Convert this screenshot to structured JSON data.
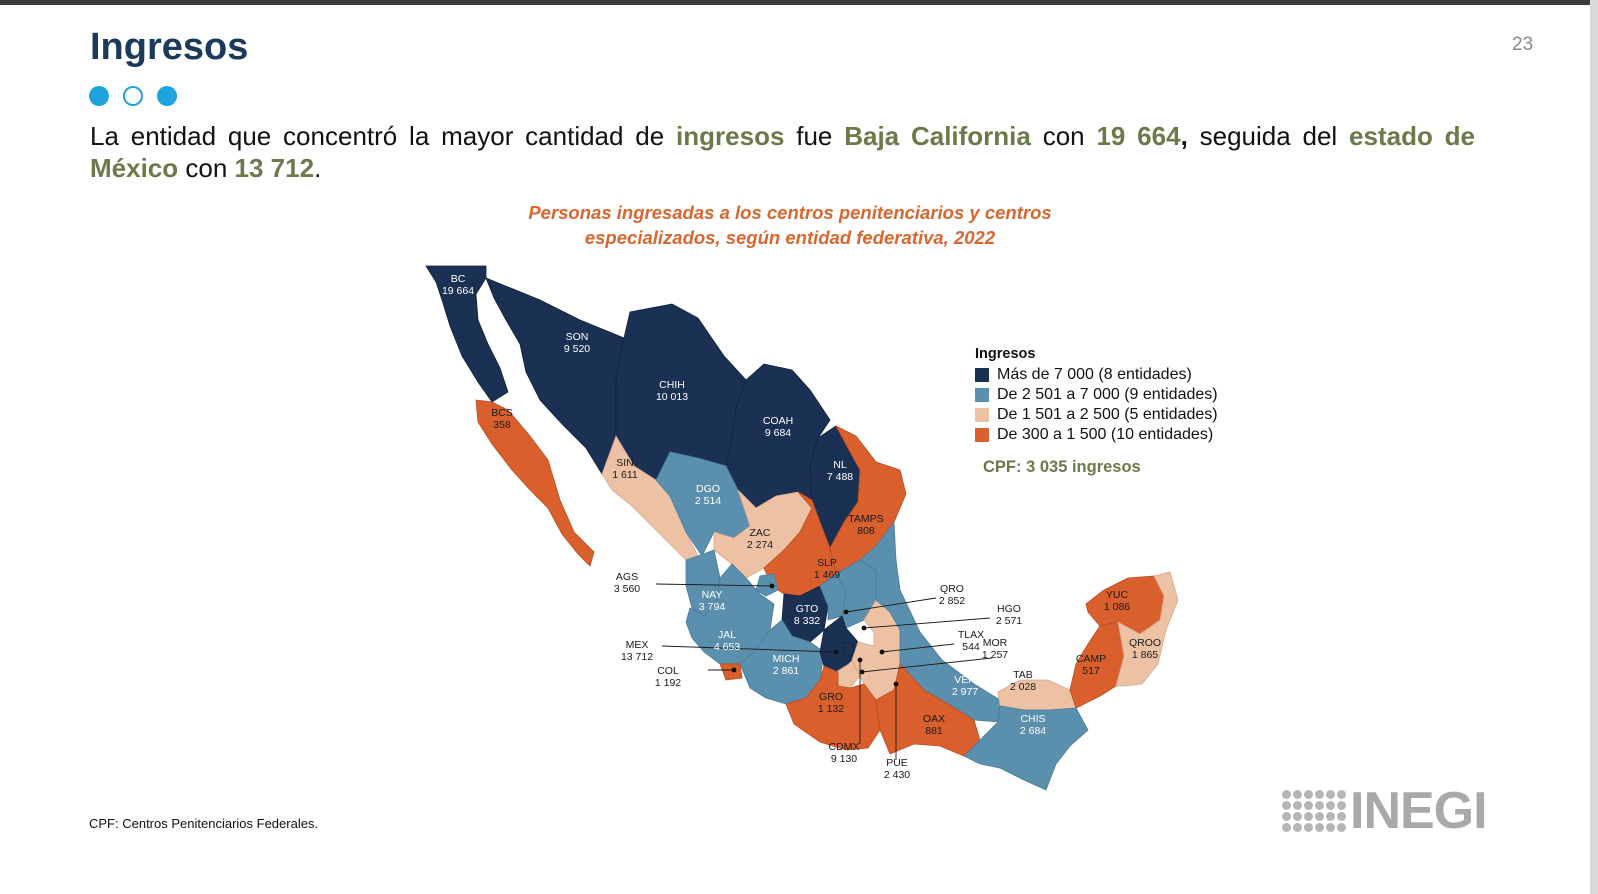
{
  "page": {
    "title": "Ingresos",
    "page_number": "23",
    "lead": {
      "t1": "La entidad que concentró la mayor cantidad de ",
      "h1": "ingresos",
      "t2": " fue ",
      "h2": "Baja California",
      "t3": " con ",
      "h3": "19 664",
      "t4": ",",
      "t5": " seguida del ",
      "h4": "estado de México",
      "t6": " con ",
      "h5": "13 712",
      "t7": "."
    },
    "footnote": "CPF: Centros Penitenciarios Federales.",
    "logo_text": "INEGI"
  },
  "map": {
    "title_line1": "Personas ingresadas a los centros penitenciarios y centros",
    "title_line2": "especializados, según entidad federativa, 2022",
    "legend_title": "Ingresos",
    "classes": [
      {
        "label": "Más de 7 000 (8 entidades)",
        "color": "#1b3154"
      },
      {
        "label": "De 2 501 a 7 000 (9 entidades)",
        "color": "#5b8fae"
      },
      {
        "label": "De 1 501 a 2 500 (5 entidades)",
        "color": "#ecc1a4"
      },
      {
        "label": "De 300 a 1 500 (10 entidades)",
        "color": "#d95f2c"
      }
    ],
    "cpf_note": "CPF: 3 035 ingresos",
    "states": [
      {
        "abbr": "BC",
        "value": "19 664"
      },
      {
        "abbr": "SON",
        "value": "9 520"
      },
      {
        "abbr": "CHIH",
        "value": "10 013"
      },
      {
        "abbr": "COAH",
        "value": "9 684"
      },
      {
        "abbr": "NL",
        "value": "7 488"
      },
      {
        "abbr": "TAMPS",
        "value": "808"
      },
      {
        "abbr": "BCS",
        "value": "358"
      },
      {
        "abbr": "SIN",
        "value": "1 611"
      },
      {
        "abbr": "DGO",
        "value": "2 514"
      },
      {
        "abbr": "ZAC",
        "value": "2 274"
      },
      {
        "abbr": "SLP",
        "value": "1 469"
      },
      {
        "abbr": "NAY",
        "value": "3 794"
      },
      {
        "abbr": "GTO",
        "value": "8 332"
      },
      {
        "abbr": "JAL",
        "value": "4 653"
      },
      {
        "abbr": "MICH",
        "value": "2 861"
      },
      {
        "abbr": "GRO",
        "value": "1 132"
      },
      {
        "abbr": "OAX",
        "value": "881"
      },
      {
        "abbr": "VER",
        "value": "2 977"
      },
      {
        "abbr": "TAB",
        "value": "2 028"
      },
      {
        "abbr": "CHIS",
        "value": "2 684"
      },
      {
        "abbr": "CAMP",
        "value": "517"
      },
      {
        "abbr": "YUC",
        "value": "1 086"
      },
      {
        "abbr": "QROO",
        "value": "1 865"
      }
    ],
    "callouts": [
      {
        "abbr": "AGS",
        "value": "3 560"
      },
      {
        "abbr": "QRO",
        "value": "2 852"
      },
      {
        "abbr": "HGO",
        "value": "2 571"
      },
      {
        "abbr": "TLAX",
        "value": "544"
      },
      {
        "abbr": "MOR",
        "value": "1 257"
      },
      {
        "abbr": "MEX",
        "value": "13 712"
      },
      {
        "abbr": "COL",
        "value": "1 192"
      },
      {
        "abbr": "CDMX",
        "value": "9 130"
      },
      {
        "abbr": "PUE",
        "value": "2 430"
      }
    ]
  }
}
